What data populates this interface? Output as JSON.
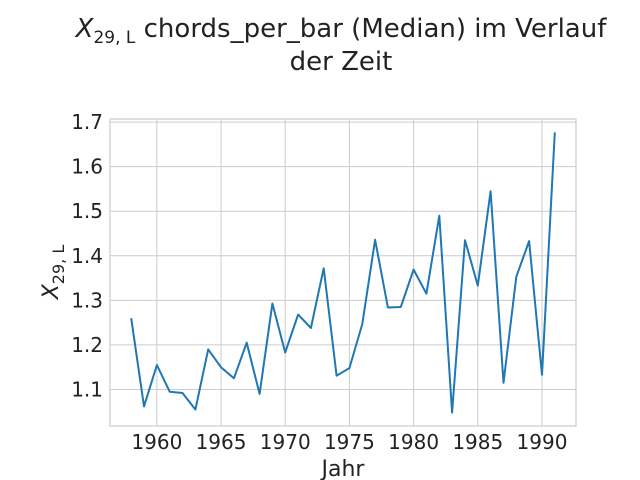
{
  "chart_data": {
    "type": "line",
    "title": {
      "line1_symbol": "X",
      "line1_subscript": "29, L",
      "line1_rest": " chords_per_bar (Median) im Verlauf",
      "line2": "der Zeit"
    },
    "xlabel": "Jahr",
    "ylabel": {
      "symbol": "X",
      "subscript": "29, L"
    },
    "xlim": [
      1956.35,
      1992.65
    ],
    "ylim": [
      1.018,
      1.707
    ],
    "xticks": [
      1960,
      1965,
      1970,
      1975,
      1980,
      1985,
      1990
    ],
    "yticks": [
      1.1,
      1.2,
      1.3,
      1.4,
      1.5,
      1.6,
      1.7
    ],
    "ytick_labels": [
      "1.1",
      "1.2",
      "1.3",
      "1.4",
      "1.5",
      "1.6",
      "1.7"
    ],
    "grid": true,
    "series": [
      {
        "color": "#1f77b4",
        "x": [
          1958,
          1959,
          1960,
          1961,
          1962,
          1963,
          1964,
          1965,
          1966,
          1967,
          1968,
          1969,
          1970,
          1971,
          1972,
          1973,
          1974,
          1975,
          1976,
          1977,
          1978,
          1979,
          1980,
          1981,
          1982,
          1983,
          1984,
          1985,
          1986,
          1987,
          1988,
          1989,
          1990,
          1991
        ],
        "y": [
          1.26,
          1.062,
          1.155,
          1.095,
          1.092,
          1.055,
          1.19,
          1.15,
          1.125,
          1.205,
          1.09,
          1.293,
          1.183,
          1.268,
          1.238,
          1.372,
          1.131,
          1.148,
          1.247,
          1.436,
          1.284,
          1.285,
          1.369,
          1.315,
          1.49,
          1.048,
          1.435,
          1.333,
          1.545,
          1.115,
          1.353,
          1.433,
          1.133,
          1.677
        ]
      }
    ]
  }
}
